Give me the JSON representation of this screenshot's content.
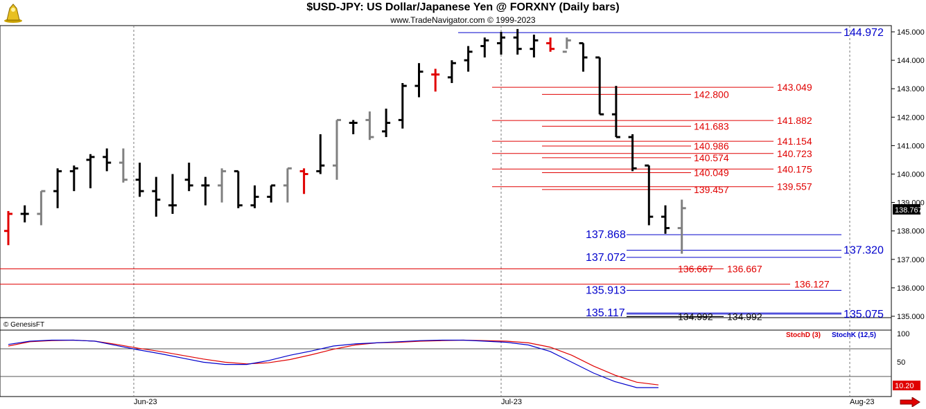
{
  "header": {
    "title": "$USD-JPY:  US Dollar/Japanese Yen @ FORXNY  (Daily bars)",
    "subtitle": "www.TradeNavigator.com © 1999-2023",
    "copyright": "© GenesisFT"
  },
  "colors": {
    "up_bar": "#000000",
    "down_bar": "#808080",
    "reversal_bar": "#e00000",
    "stoch_d": "#e00000",
    "stoch_k": "#0000cc",
    "level_red": "#e00000",
    "level_blue": "#0000cc"
  },
  "chart_data": [
    {
      "type": "ohlc",
      "title": "$USD-JPY:  US Dollar/Japanese Yen @ FORXNY  (Daily bars)",
      "ylim": [
        134.5,
        145.2
      ],
      "yticks": [
        "145.000",
        "144.000",
        "143.000",
        "142.000",
        "141.000",
        "140.000",
        "139.000",
        "138.000",
        "137.000",
        "136.000",
        "135.000"
      ],
      "xticks": [
        "Jun-23",
        "Jul-23",
        "Aug-23"
      ],
      "last_price": "138.767",
      "bars": [
        {
          "o": 138.0,
          "h": 138.7,
          "l": 137.5,
          "c": 138.6,
          "color": "red"
        },
        {
          "o": 138.6,
          "h": 138.9,
          "l": 138.3,
          "c": 138.6,
          "color": "black"
        },
        {
          "o": 138.6,
          "h": 139.4,
          "l": 138.2,
          "c": 139.4,
          "color": "gray"
        },
        {
          "o": 139.4,
          "h": 140.2,
          "l": 138.8,
          "c": 140.1,
          "color": "black"
        },
        {
          "o": 140.1,
          "h": 140.3,
          "l": 139.4,
          "c": 140.2,
          "color": "black"
        },
        {
          "o": 140.5,
          "h": 140.7,
          "l": 139.5,
          "c": 140.6,
          "color": "black"
        },
        {
          "o": 140.6,
          "h": 140.9,
          "l": 140.1,
          "c": 140.4,
          "color": "black"
        },
        {
          "o": 140.4,
          "h": 140.9,
          "l": 139.7,
          "c": 139.8,
          "color": "gray"
        },
        {
          "o": 139.8,
          "h": 140.4,
          "l": 139.2,
          "c": 139.4,
          "color": "black"
        },
        {
          "o": 139.4,
          "h": 139.9,
          "l": 138.5,
          "c": 139.1,
          "color": "black"
        },
        {
          "o": 138.9,
          "h": 140.0,
          "l": 138.6,
          "c": 138.9,
          "color": "black"
        },
        {
          "o": 139.8,
          "h": 140.4,
          "l": 139.4,
          "c": 139.6,
          "color": "black"
        },
        {
          "o": 139.6,
          "h": 139.9,
          "l": 138.9,
          "c": 139.6,
          "color": "black"
        },
        {
          "o": 139.6,
          "h": 140.2,
          "l": 139.0,
          "c": 140.1,
          "color": "gray"
        },
        {
          "o": 140.1,
          "h": 140.1,
          "l": 138.8,
          "c": 138.9,
          "color": "black"
        },
        {
          "o": 138.9,
          "h": 139.6,
          "l": 138.8,
          "c": 139.2,
          "color": "black"
        },
        {
          "o": 139.2,
          "h": 139.6,
          "l": 139.0,
          "c": 139.6,
          "color": "black"
        },
        {
          "o": 139.6,
          "h": 140.2,
          "l": 139.0,
          "c": 140.2,
          "color": "gray"
        },
        {
          "o": 140.1,
          "h": 140.2,
          "l": 139.3,
          "c": 140.0,
          "color": "red"
        },
        {
          "o": 140.1,
          "h": 141.4,
          "l": 140.0,
          "c": 140.3,
          "color": "black"
        },
        {
          "o": 140.3,
          "h": 141.9,
          "l": 139.8,
          "c": 141.9,
          "color": "gray"
        },
        {
          "o": 141.8,
          "h": 141.9,
          "l": 141.4,
          "c": 141.8,
          "color": "black"
        },
        {
          "o": 141.9,
          "h": 142.2,
          "l": 141.2,
          "c": 141.3,
          "color": "gray"
        },
        {
          "o": 141.5,
          "h": 142.3,
          "l": 141.3,
          "c": 141.8,
          "color": "black"
        },
        {
          "o": 141.9,
          "h": 143.2,
          "l": 141.6,
          "c": 143.1,
          "color": "black"
        },
        {
          "o": 143.1,
          "h": 143.9,
          "l": 142.7,
          "c": 143.6,
          "color": "black"
        },
        {
          "o": 143.5,
          "h": 143.7,
          "l": 142.9,
          "c": 143.5,
          "color": "red"
        },
        {
          "o": 143.4,
          "h": 144.0,
          "l": 143.2,
          "c": 143.9,
          "color": "black"
        },
        {
          "o": 144.0,
          "h": 144.5,
          "l": 143.6,
          "c": 144.3,
          "color": "black"
        },
        {
          "o": 144.5,
          "h": 144.8,
          "l": 144.1,
          "c": 144.7,
          "color": "black"
        },
        {
          "o": 144.6,
          "h": 145.0,
          "l": 144.2,
          "c": 144.8,
          "color": "black"
        },
        {
          "o": 144.8,
          "h": 145.1,
          "l": 144.2,
          "c": 144.4,
          "color": "black"
        },
        {
          "o": 144.4,
          "h": 144.9,
          "l": 144.1,
          "c": 144.7,
          "color": "black"
        },
        {
          "o": 144.6,
          "h": 144.8,
          "l": 144.3,
          "c": 144.4,
          "color": "red"
        },
        {
          "o": 144.3,
          "h": 144.8,
          "l": 144.4,
          "c": 144.7,
          "color": "gray"
        },
        {
          "o": 144.6,
          "h": 144.6,
          "l": 143.6,
          "c": 144.1,
          "color": "black"
        },
        {
          "o": 144.1,
          "h": 144.1,
          "l": 142.1,
          "c": 142.1,
          "color": "black"
        },
        {
          "o": 142.1,
          "h": 143.1,
          "l": 141.3,
          "c": 141.3,
          "color": "black"
        },
        {
          "o": 141.3,
          "h": 141.4,
          "l": 140.1,
          "c": 140.2,
          "color": "black"
        },
        {
          "o": 140.3,
          "h": 140.3,
          "l": 138.2,
          "c": 138.5,
          "color": "black"
        },
        {
          "o": 138.5,
          "h": 138.9,
          "l": 137.9,
          "c": 138.1,
          "color": "black"
        },
        {
          "o": 138.1,
          "h": 139.1,
          "l": 137.2,
          "c": 138.8,
          "color": "gray"
        }
      ]
    },
    {
      "type": "line",
      "title": "",
      "ylim": [
        0,
        100
      ],
      "yticks": [
        "100",
        "50"
      ],
      "last_value": "10.20",
      "series": [
        {
          "name": "StochD (3)",
          "color": "#e00000",
          "values": [
            82,
            90,
            92,
            93,
            91,
            85,
            78,
            72,
            65,
            58,
            52,
            49,
            51,
            57,
            66,
            76,
            84,
            88,
            89,
            91,
            92,
            93,
            92,
            91,
            88,
            80,
            65,
            45,
            28,
            15,
            10
          ]
        },
        {
          "name": "StochK (12,5)",
          "color": "#0000cc",
          "values": [
            85,
            91,
            93,
            93,
            91,
            83,
            75,
            68,
            60,
            52,
            48,
            48,
            55,
            65,
            73,
            82,
            86,
            88,
            90,
            92,
            93,
            93,
            91,
            89,
            84,
            72,
            52,
            32,
            16,
            5,
            5
          ]
        }
      ]
    }
  ],
  "levels": [
    {
      "label": "144.972",
      "color": "blue",
      "value": 144.972
    },
    {
      "label": "143.049",
      "color": "red",
      "value": 143.049
    },
    {
      "label": "142.800",
      "color": "red",
      "value": 142.8
    },
    {
      "label": "141.882",
      "color": "red",
      "value": 141.882
    },
    {
      "label": "141.683",
      "color": "red",
      "value": 141.683
    },
    {
      "label": "141.154",
      "color": "red",
      "value": 141.154
    },
    {
      "label": "140.986",
      "color": "red",
      "value": 140.986
    },
    {
      "label": "140.723",
      "color": "red",
      "value": 140.723
    },
    {
      "label": "140.574",
      "color": "red",
      "value": 140.574
    },
    {
      "label": "140.175",
      "color": "red",
      "value": 140.175
    },
    {
      "label": "140.049",
      "color": "red",
      "value": 140.049
    },
    {
      "label": "139.557",
      "color": "red",
      "value": 139.557
    },
    {
      "label": "139.457",
      "color": "red",
      "value": 139.457
    },
    {
      "label": "137.868",
      "color": "blue",
      "value": 137.868
    },
    {
      "label": "137.320",
      "color": "blue",
      "value": 137.32
    },
    {
      "label": "137.072",
      "color": "blue",
      "value": 137.072
    },
    {
      "label": "136.667",
      "color": "red",
      "value": 136.667
    },
    {
      "label": "136.667",
      "color": "red",
      "value": 136.667
    },
    {
      "label": "136.127",
      "color": "red",
      "value": 136.127
    },
    {
      "label": "135.913",
      "color": "blue",
      "value": 135.913
    },
    {
      "label": "135.117",
      "color": "blue",
      "value": 135.117
    },
    {
      "label": "135.075",
      "color": "blue",
      "value": 135.075
    },
    {
      "label": "134.992",
      "color": "black",
      "value": 134.992
    },
    {
      "label": "134.992",
      "color": "black",
      "value": 134.992
    }
  ]
}
